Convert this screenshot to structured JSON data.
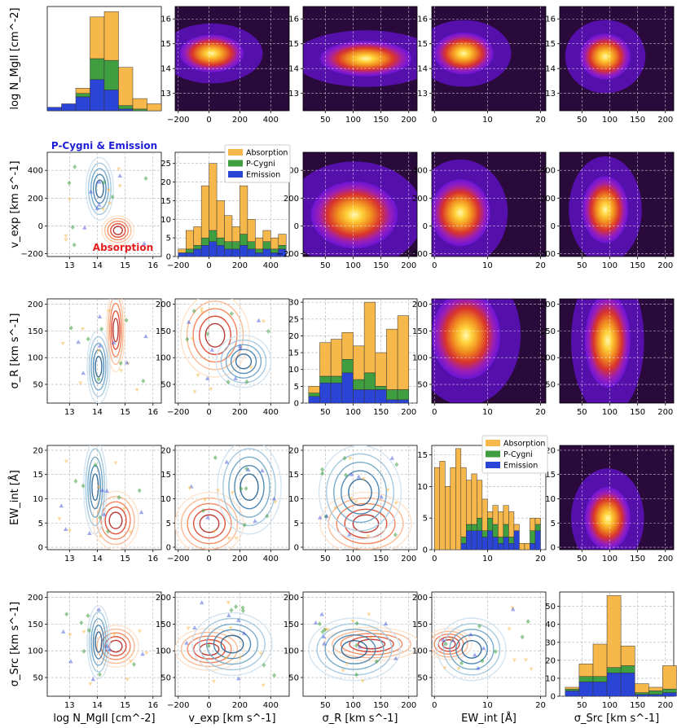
{
  "figure": {
    "annotations": [
      {
        "text": "P-Cygni & Emission",
        "color": "#1f1fd6"
      },
      {
        "text": "Absorption",
        "color": "#e61d1d"
      }
    ],
    "legend_entries": [
      {
        "label": "Absorption",
        "color": "#f7b84b"
      },
      {
        "label": "P-Cygni",
        "color": "#3f9e3f"
      },
      {
        "label": "Emission",
        "color": "#2a45d6"
      }
    ],
    "row_ylabels": [
      "log N_MgII [cm^-2]",
      "v_exp [km s^-1]",
      "σ_R [km s^-1]",
      "EW_int [Å]",
      "σ_Src [km s^-1]"
    ],
    "col_xlabels": [
      "log N_MgII [cm^-2]",
      "v_exp [km s^-1]",
      "σ_R [km s^-1]",
      "EW_int [Å]",
      "σ_Src [km s^-1]"
    ]
  },
  "chart_data": [
    {
      "type": "bar",
      "panel": "row1-col1",
      "title": "",
      "xlabel": "",
      "ylabel": "log N_MgII [cm^-2]",
      "categories": [
        "12.25-12.75",
        "12.75-13.25",
        "13.25-13.75",
        "13.75-14.25",
        "14.25-14.75",
        "14.75-15.25",
        "15.25-15.75",
        "15.75-16.25"
      ],
      "series": [
        {
          "name": "Emission",
          "values": [
            2,
            4,
            8,
            18,
            12,
            1,
            0,
            0
          ]
        },
        {
          "name": "P-Cygni",
          "values": [
            0,
            0,
            2,
            12,
            17,
            2,
            1,
            0
          ]
        },
        {
          "name": "Absorption",
          "values": [
            0,
            0,
            3,
            24,
            28,
            22,
            6,
            4
          ]
        }
      ],
      "xlim": [
        12,
        16.3
      ],
      "ylim": [
        0,
        60
      ]
    },
    {
      "type": "heatmap",
      "panel": "row1-col2",
      "xlim": [
        -220,
        520
      ],
      "ylim": [
        12.3,
        16.5
      ],
      "xticks": [
        "-200",
        "0",
        "200",
        "400"
      ],
      "yticks": [
        "13",
        "14",
        "15",
        "16"
      ]
    },
    {
      "type": "heatmap",
      "panel": "row1-col3",
      "xlim": [
        10,
        215
      ],
      "ylim": [
        12.3,
        16.5
      ],
      "xticks": [
        "50",
        "100",
        "150",
        "200"
      ],
      "yticks": [
        "13",
        "14",
        "15",
        "16"
      ]
    },
    {
      "type": "heatmap",
      "panel": "row1-col4",
      "xlim": [
        -0.5,
        21
      ],
      "ylim": [
        12.3,
        16.5
      ],
      "xticks": [
        "0",
        "10",
        "20"
      ],
      "yticks": [
        "13",
        "14",
        "15",
        "16"
      ]
    },
    {
      "type": "heatmap",
      "panel": "row1-col5",
      "xlim": [
        10,
        215
      ],
      "ylim": [
        12.3,
        16.5
      ],
      "xticks": [
        "50",
        "100",
        "150",
        "200"
      ],
      "yticks": [
        "13",
        "14",
        "15",
        "16"
      ]
    },
    {
      "type": "scatter",
      "panel": "row2-col1",
      "xlim": [
        12.2,
        16.3
      ],
      "ylim": [
        -220,
        530
      ],
      "xticks": [
        "13",
        "14",
        "15",
        "16"
      ],
      "yticks": [
        "-200",
        "0",
        "200",
        "400"
      ],
      "ylabel": "v_exp [km s^-1]"
    },
    {
      "type": "bar",
      "panel": "row2-col2",
      "xlim": [
        -220,
        520
      ],
      "ylim": [
        0,
        28
      ],
      "xticks": [
        "-200",
        "0",
        "200",
        "400"
      ],
      "yticks": [
        "0",
        "5",
        "10",
        "15",
        "20",
        "25"
      ],
      "bin_edges": [
        -200,
        -150,
        -100,
        -50,
        0,
        50,
        100,
        150,
        200,
        250,
        300,
        350,
        400,
        450,
        500
      ],
      "series": [
        {
          "name": "Emission",
          "values": [
            1,
            1,
            2,
            3,
            4,
            3,
            2,
            2,
            3,
            2,
            1,
            2,
            1,
            2
          ]
        },
        {
          "name": "P-Cygni",
          "values": [
            0,
            1,
            1,
            2,
            3,
            2,
            2,
            2,
            3,
            2,
            1,
            2,
            1,
            1
          ]
        },
        {
          "name": "Absorption",
          "values": [
            1,
            5,
            5,
            14,
            18,
            10,
            7,
            4,
            13,
            6,
            3,
            3,
            3,
            3
          ]
        }
      ]
    },
    {
      "type": "heatmap",
      "panel": "row2-col3",
      "xlim": [
        10,
        215
      ],
      "ylim": [
        -220,
        530
      ],
      "xticks": [
        "50",
        "100",
        "150",
        "200"
      ],
      "yticks": [
        "-200",
        "0",
        "200",
        "400"
      ]
    },
    {
      "type": "heatmap",
      "panel": "row2-col4",
      "xlim": [
        -0.5,
        21
      ],
      "ylim": [
        -220,
        530
      ],
      "xticks": [
        "0",
        "10",
        "20"
      ],
      "yticks": [
        "-200",
        "0",
        "200",
        "400"
      ]
    },
    {
      "type": "heatmap",
      "panel": "row2-col5",
      "xlim": [
        10,
        215
      ],
      "ylim": [
        -220,
        530
      ],
      "xticks": [
        "50",
        "100",
        "150",
        "200"
      ],
      "yticks": [
        "-200",
        "0",
        "200",
        "400"
      ]
    },
    {
      "type": "scatter",
      "panel": "row3-col1",
      "xlim": [
        12.2,
        16.3
      ],
      "ylim": [
        15,
        210
      ],
      "xticks": [
        "13",
        "14",
        "15",
        "16"
      ],
      "yticks": [
        "50",
        "100",
        "150",
        "200"
      ],
      "ylabel": "σ_R [km s^-1]"
    },
    {
      "type": "scatter",
      "panel": "row3-col2",
      "xlim": [
        -220,
        520
      ],
      "ylim": [
        15,
        210
      ],
      "xticks": [
        "-200",
        "0",
        "200",
        "400"
      ],
      "yticks": [
        "50",
        "100",
        "150",
        "200"
      ]
    },
    {
      "type": "bar",
      "panel": "row3-col3",
      "xlim": [
        10,
        215
      ],
      "ylim": [
        0,
        31
      ],
      "xticks": [
        "50",
        "100",
        "150",
        "200"
      ],
      "yticks": [
        "0",
        "5",
        "10",
        "15",
        "20",
        "25",
        "30"
      ],
      "bin_edges": [
        20,
        40,
        60,
        80,
        100,
        120,
        140,
        160,
        180,
        200
      ],
      "series": [
        {
          "name": "Emission",
          "values": [
            2,
            6,
            6,
            9,
            4,
            4,
            4,
            1,
            1
          ]
        },
        {
          "name": "P-Cygni",
          "values": [
            1,
            2,
            2,
            4,
            3,
            5,
            1,
            3,
            3
          ]
        },
        {
          "name": "Absorption",
          "values": [
            2,
            10,
            11,
            8,
            10,
            21,
            10,
            18,
            22
          ]
        }
      ]
    },
    {
      "type": "heatmap",
      "panel": "row3-col4",
      "xlim": [
        -0.5,
        21
      ],
      "ylim": [
        15,
        210
      ],
      "xticks": [
        "0",
        "10",
        "20"
      ],
      "yticks": [
        "50",
        "100",
        "150",
        "200"
      ]
    },
    {
      "type": "heatmap",
      "panel": "row3-col5",
      "xlim": [
        10,
        215
      ],
      "ylim": [
        15,
        210
      ],
      "xticks": [
        "50",
        "100",
        "150",
        "200"
      ],
      "yticks": [
        "50",
        "100",
        "150",
        "200"
      ]
    },
    {
      "type": "scatter",
      "panel": "row4-col1",
      "xlim": [
        12.2,
        16.3
      ],
      "ylim": [
        -0.5,
        21
      ],
      "xticks": [
        "13",
        "14",
        "15",
        "16"
      ],
      "yticks": [
        "0",
        "5",
        "10",
        "15",
        "20"
      ],
      "ylabel": "EW_int [Å]"
    },
    {
      "type": "scatter",
      "panel": "row4-col2",
      "xlim": [
        -220,
        520
      ],
      "ylim": [
        -0.5,
        21
      ],
      "xticks": [
        "-200",
        "0",
        "200",
        "400"
      ],
      "yticks": [
        "0",
        "5",
        "10",
        "15",
        "20"
      ]
    },
    {
      "type": "scatter",
      "panel": "row4-col3",
      "xlim": [
        10,
        215
      ],
      "ylim": [
        -0.5,
        21
      ],
      "xticks": [
        "50",
        "100",
        "150",
        "200"
      ],
      "yticks": [
        "0",
        "5",
        "10",
        "15",
        "20"
      ]
    },
    {
      "type": "bar",
      "panel": "row4-col4",
      "xlim": [
        -0.5,
        21
      ],
      "ylim": [
        0,
        16.5
      ],
      "xticks": [
        "0",
        "10",
        "20"
      ],
      "yticks": [
        "0",
        "5",
        "10",
        "15"
      ],
      "bin_edges": [
        0,
        1,
        2,
        3,
        4,
        5,
        6,
        7,
        8,
        9,
        10,
        11,
        12,
        13,
        14,
        15,
        16,
        17,
        18,
        19,
        20
      ],
      "series": [
        {
          "name": "Emission",
          "values": [
            0,
            0,
            0,
            0,
            0,
            1,
            3,
            3,
            3,
            2,
            3,
            2,
            1,
            2,
            1,
            3,
            0,
            0,
            1,
            3
          ]
        },
        {
          "name": "P-Cygni",
          "values": [
            0,
            0,
            0,
            0,
            0,
            1,
            1,
            1,
            2,
            1,
            2,
            2,
            1,
            2,
            1,
            0,
            0,
            0,
            2,
            1
          ]
        },
        {
          "name": "Absorption",
          "values": [
            13,
            14,
            10,
            13,
            16,
            11,
            7,
            8,
            6,
            5,
            1,
            3,
            4,
            3,
            4,
            1,
            1,
            1,
            2,
            1
          ]
        }
      ]
    },
    {
      "type": "heatmap",
      "panel": "row4-col5",
      "xlim": [
        10,
        215
      ],
      "ylim": [
        -0.5,
        21
      ],
      "xticks": [
        "50",
        "100",
        "150",
        "200"
      ],
      "yticks": [
        "0",
        "5",
        "10",
        "15",
        "20"
      ]
    },
    {
      "type": "scatter",
      "panel": "row5-col1",
      "xlim": [
        12.2,
        16.3
      ],
      "ylim": [
        15,
        210
      ],
      "xticks": [
        "13",
        "14",
        "15",
        "16"
      ],
      "yticks": [
        "50",
        "100",
        "150",
        "200"
      ],
      "ylabel": "σ_Src [km s^-1]",
      "xlabel": "log N_MgII [cm^-2]"
    },
    {
      "type": "scatter",
      "panel": "row5-col2",
      "xlim": [
        -220,
        520
      ],
      "ylim": [
        15,
        210
      ],
      "xticks": [
        "-200",
        "0",
        "200",
        "400"
      ],
      "yticks": [
        "50",
        "100",
        "150",
        "200"
      ],
      "xlabel": "v_exp [km s^-1]"
    },
    {
      "type": "scatter",
      "panel": "row5-col3",
      "xlim": [
        10,
        215
      ],
      "ylim": [
        15,
        210
      ],
      "xticks": [
        "50",
        "100",
        "150",
        "200"
      ],
      "yticks": [
        "50",
        "100",
        "150",
        "200"
      ],
      "xlabel": "σ_R [km s^-1]"
    },
    {
      "type": "scatter",
      "panel": "row5-col4",
      "xlim": [
        -0.5,
        21
      ],
      "ylim": [
        15,
        210
      ],
      "xticks": [
        "0",
        "10",
        "20"
      ],
      "yticks": [
        "50",
        "100",
        "150",
        "200"
      ],
      "xlabel": "EW_int [Å]"
    },
    {
      "type": "bar",
      "panel": "row5-col5",
      "xlim": [
        10,
        215
      ],
      "ylim": [
        0,
        58
      ],
      "xticks": [
        "50",
        "100",
        "150",
        "200"
      ],
      "yticks": [
        "0",
        "10",
        "20",
        "30",
        "40",
        "50"
      ],
      "xlabel": "σ_Src [km s^-1]",
      "bin_edges": [
        20,
        45,
        70,
        95,
        120,
        145,
        170,
        195,
        220
      ],
      "series": [
        {
          "name": "Emission",
          "values": [
            3,
            8,
            8,
            13,
            13,
            1,
            1,
            2
          ]
        },
        {
          "name": "P-Cygni",
          "values": [
            1,
            3,
            3,
            3,
            4,
            1,
            2,
            2
          ]
        },
        {
          "name": "Absorption",
          "values": [
            1,
            7,
            18,
            40,
            11,
            5,
            2,
            13
          ]
        }
      ]
    }
  ]
}
